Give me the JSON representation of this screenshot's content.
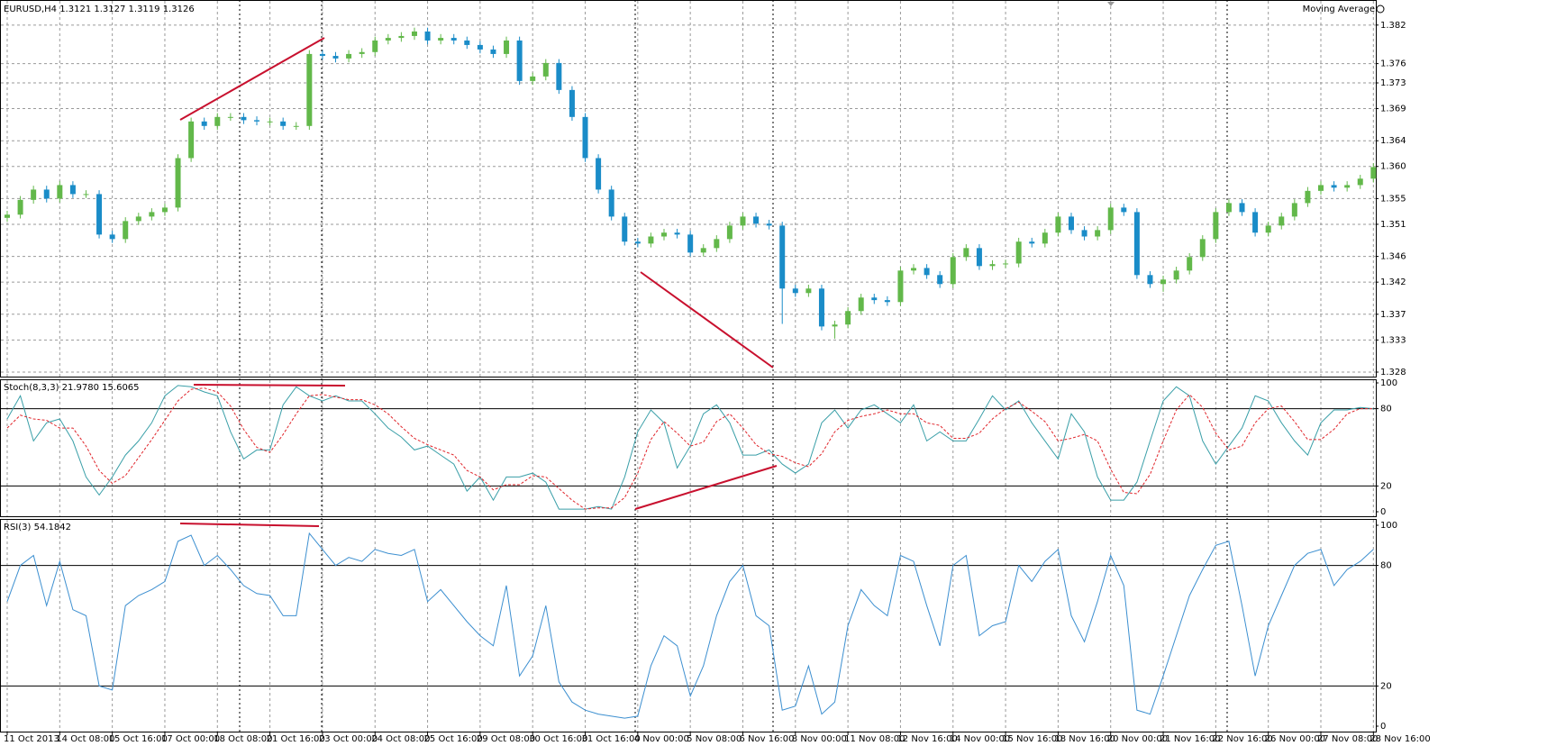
{
  "chart_data": [
    {
      "type": "candlestick",
      "title": "EURUSD,H4  1.3121 1.3127 1.3119 1.3126",
      "indicator": "Moving Average",
      "categories": [
        "11 Oct 2013",
        null,
        null,
        null,
        "14 Oct 08:00",
        null,
        null,
        null,
        "15 Oct 16:00",
        null,
        null,
        null,
        "17 Oct 00:00",
        null,
        null,
        null,
        "18 Oct 08:00",
        null,
        null,
        null,
        "21 Oct 16:00",
        null,
        null,
        null,
        "23 Oct 00:00",
        null,
        null,
        null,
        "24 Oct 08:00",
        null,
        null,
        null,
        "25 Oct 16:00",
        null,
        null,
        null,
        "29 Oct 08:00",
        null,
        null,
        null,
        "30 Oct 16:00",
        null,
        null,
        null,
        "31 Oct 16:00",
        null,
        null,
        null,
        "4 Nov 00:00",
        null,
        null,
        null,
        "5 Nov 08:00",
        null,
        null,
        null,
        "6 Nov 16:00",
        null,
        null,
        null,
        "8 Nov 00:00",
        null,
        null,
        null,
        "11 Nov 08:00",
        null,
        null,
        null,
        "12 Nov 16:00",
        null,
        null,
        null,
        "14 Nov 00:00",
        null,
        null,
        null,
        "15 Nov 16:00",
        null,
        null,
        null,
        "18 Nov 16:00",
        null,
        null,
        null,
        "20 Nov 00:00",
        null,
        null,
        null,
        "21 Nov 16:00",
        null,
        null,
        null,
        "22 Nov 16:00",
        null,
        null,
        null,
        "26 Nov 00:00",
        null,
        null,
        null,
        "27 Nov 08:00",
        null,
        null,
        null,
        "28 Nov 16:00"
      ],
      "open": [
        1.352,
        1.3525,
        1.3548,
        1.3564,
        1.355,
        1.3571,
        1.3557,
        1.3557,
        1.3494,
        1.3487,
        1.3515,
        1.3522,
        1.3529,
        1.3536,
        1.3613,
        1.367,
        1.3663,
        1.3677,
        1.3677,
        1.3672,
        1.367,
        1.367,
        1.3663,
        1.3663,
        1.3775,
        1.3772,
        1.3768,
        1.3775,
        1.3778,
        1.3796,
        1.38,
        1.3803,
        1.381,
        1.3796,
        1.38,
        1.3796,
        1.3789,
        1.3782,
        1.3775,
        1.3796,
        1.3733,
        1.374,
        1.3761,
        1.3719,
        1.3677,
        1.3613,
        1.3564,
        1.3522,
        1.3483,
        1.348,
        1.3491,
        1.3497,
        1.3494,
        1.3466,
        1.3473,
        1.3487,
        1.3508,
        1.3522,
        1.3511,
        1.3508,
        1.341,
        1.3403,
        1.341,
        1.3351,
        1.3354,
        1.3375,
        1.3396,
        1.3392,
        1.3389,
        1.3438,
        1.3442,
        1.3431,
        1.3417,
        1.3459,
        1.3473,
        1.3445,
        1.3448,
        1.3449,
        1.3483,
        1.348,
        1.3497,
        1.3522,
        1.3501,
        1.3491,
        1.3501,
        1.3536,
        1.3529,
        1.3431,
        1.3417,
        1.3424,
        1.3438,
        1.3459,
        1.3487,
        1.3529,
        1.3543,
        1.3529,
        1.3497,
        1.3508,
        1.3522,
        1.3543,
        1.3562,
        1.3571,
        1.3567,
        1.3571,
        1.3581
      ],
      "high": [
        1.3531,
        1.3554,
        1.357,
        1.357,
        1.3577,
        1.3577,
        1.3563,
        1.3563,
        1.35,
        1.3521,
        1.3528,
        1.3535,
        1.3542,
        1.3619,
        1.3676,
        1.3676,
        1.3683,
        1.3683,
        1.3683,
        1.3678,
        1.3676,
        1.3676,
        1.3669,
        1.3781,
        1.3781,
        1.3778,
        1.3781,
        1.3784,
        1.3802,
        1.3806,
        1.3809,
        1.3816,
        1.3816,
        1.3806,
        1.3806,
        1.3802,
        1.3795,
        1.3788,
        1.3802,
        1.3802,
        1.3746,
        1.3767,
        1.3767,
        1.3725,
        1.3683,
        1.3619,
        1.357,
        1.3528,
        1.3489,
        1.3497,
        1.3503,
        1.3503,
        1.35,
        1.3479,
        1.3493,
        1.3514,
        1.3528,
        1.3528,
        1.3517,
        1.3514,
        1.3416,
        1.3416,
        1.3416,
        1.336,
        1.3381,
        1.3402,
        1.3402,
        1.3398,
        1.3444,
        1.3448,
        1.3448,
        1.3437,
        1.3465,
        1.3479,
        1.3479,
        1.3454,
        1.3455,
        1.3489,
        1.3489,
        1.3503,
        1.3528,
        1.3528,
        1.3507,
        1.3507,
        1.3542,
        1.3542,
        1.3535,
        1.3437,
        1.343,
        1.3444,
        1.3465,
        1.3493,
        1.3535,
        1.3549,
        1.3549,
        1.3535,
        1.3514,
        1.3528,
        1.3549,
        1.3568,
        1.3577,
        1.3577,
        1.3577,
        1.3587,
        1.3605
      ],
      "low": [
        1.3514,
        1.3519,
        1.3542,
        1.3544,
        1.3544,
        1.3551,
        1.3551,
        1.3488,
        1.3481,
        1.3481,
        1.3509,
        1.3516,
        1.3523,
        1.353,
        1.3607,
        1.3657,
        1.3657,
        1.3671,
        1.3666,
        1.3664,
        1.3664,
        1.3657,
        1.3657,
        1.3657,
        1.3766,
        1.3762,
        1.3762,
        1.3769,
        1.3772,
        1.379,
        1.3794,
        1.3797,
        1.379,
        1.379,
        1.379,
        1.3783,
        1.3776,
        1.3769,
        1.3769,
        1.3727,
        1.3727,
        1.3734,
        1.3713,
        1.3671,
        1.3607,
        1.3558,
        1.3516,
        1.3477,
        1.3474,
        1.3474,
        1.3485,
        1.3488,
        1.346,
        1.346,
        1.3467,
        1.3481,
        1.3502,
        1.3505,
        1.3502,
        1.3355,
        1.3397,
        1.3397,
        1.3345,
        1.3332,
        1.3348,
        1.3369,
        1.3386,
        1.3383,
        1.3383,
        1.3432,
        1.3425,
        1.3411,
        1.3411,
        1.3453,
        1.3439,
        1.3439,
        1.3442,
        1.3443,
        1.3474,
        1.3474,
        1.3491,
        1.3495,
        1.3485,
        1.3485,
        1.3495,
        1.3523,
        1.3425,
        1.3411,
        1.3405,
        1.3418,
        1.3432,
        1.3453,
        1.3481,
        1.3523,
        1.3523,
        1.3491,
        1.3491,
        1.3502,
        1.3516,
        1.3537,
        1.3556,
        1.3561,
        1.3561,
        1.3565,
        1.3575
      ],
      "close": [
        1.3525,
        1.3548,
        1.3564,
        1.355,
        1.3571,
        1.3557,
        1.3557,
        1.3494,
        1.3487,
        1.3515,
        1.3522,
        1.3529,
        1.3536,
        1.3613,
        1.367,
        1.3663,
        1.3677,
        1.3677,
        1.3672,
        1.367,
        1.367,
        1.3663,
        1.3663,
        1.3775,
        1.3772,
        1.3768,
        1.3775,
        1.3778,
        1.3796,
        1.38,
        1.3803,
        1.381,
        1.3796,
        1.38,
        1.3796,
        1.3789,
        1.3782,
        1.3775,
        1.3796,
        1.3733,
        1.374,
        1.3761,
        1.3719,
        1.3677,
        1.3613,
        1.3564,
        1.3522,
        1.3483,
        1.348,
        1.3491,
        1.3497,
        1.3494,
        1.3466,
        1.3473,
        1.3487,
        1.3508,
        1.3522,
        1.3511,
        1.3508,
        1.341,
        1.3403,
        1.341,
        1.3351,
        1.3354,
        1.3375,
        1.3396,
        1.3392,
        1.3389,
        1.3438,
        1.3442,
        1.3431,
        1.3417,
        1.3459,
        1.3473,
        1.3445,
        1.3448,
        1.3449,
        1.3483,
        1.348,
        1.3497,
        1.3522,
        1.3501,
        1.3491,
        1.3501,
        1.3536,
        1.3529,
        1.3431,
        1.3417,
        1.3424,
        1.3438,
        1.3459,
        1.3487,
        1.3529,
        1.3543,
        1.3529,
        1.3497,
        1.3508,
        1.3522,
        1.3543,
        1.3562,
        1.3571,
        1.3567,
        1.3571,
        1.3581,
        1.3599
      ],
      "up_color": "#62b84a",
      "down_color": "#1a8cc8",
      "ylim": [
        1.3273,
        1.3859
      ],
      "yticks": [
        1.382,
        1.376,
        1.373,
        1.369,
        1.364,
        {
          "value": 1.36,
          "label": "1.360"
        },
        1.355,
        1.351,
        1.346,
        1.342,
        1.337,
        1.333,
        1.328
      ],
      "grid": true
    },
    {
      "type": "line",
      "title": "Stoch(8,3,3) 21.9780 15.6065",
      "series": [
        {
          "color": "#3a9fa8",
          "style": "solid",
          "values": [
            72,
            90,
            55,
            69,
            72,
            55,
            27,
            13,
            27,
            44,
            55,
            69,
            90,
            98,
            97,
            93,
            90,
            62,
            41,
            48,
            48,
            83,
            97,
            90,
            86,
            90,
            86,
            86,
            76,
            65,
            58,
            48,
            51,
            44,
            37,
            16,
            27,
            9,
            27,
            27,
            30,
            23,
            2,
            2,
            2,
            4,
            2,
            27,
            62,
            79,
            69,
            34,
            51,
            76,
            83,
            69,
            44,
            44,
            48,
            37,
            30,
            37,
            69,
            79,
            65,
            79,
            83,
            76,
            69,
            83,
            55,
            62,
            55,
            55,
            72,
            90,
            79,
            86,
            69,
            55,
            41,
            76,
            62,
            27,
            9,
            9,
            23,
            55,
            86,
            97,
            90,
            55,
            37,
            51,
            65,
            90,
            86,
            69,
            55,
            44,
            69,
            79,
            79,
            81,
            80
          ]
        },
        {
          "color": "#e0242a",
          "style": "dashed",
          "values": [
            65,
            75,
            72,
            71,
            65,
            65,
            51,
            32,
            22,
            28,
            42,
            56,
            71,
            86,
            95,
            96,
            93,
            82,
            64,
            50,
            46,
            60,
            76,
            90,
            91,
            89,
            87,
            87,
            83,
            76,
            66,
            57,
            52,
            48,
            44,
            32,
            27,
            17,
            21,
            21,
            28,
            27,
            18,
            9,
            2,
            3,
            3,
            11,
            30,
            56,
            70,
            61,
            51,
            54,
            70,
            76,
            65,
            52,
            45,
            43,
            38,
            35,
            45,
            62,
            71,
            74,
            76,
            79,
            76,
            76,
            69,
            67,
            57,
            57,
            61,
            72,
            80,
            85,
            78,
            70,
            55,
            57,
            60,
            55,
            33,
            15,
            14,
            29,
            55,
            79,
            91,
            81,
            61,
            48,
            51,
            69,
            80,
            82,
            70,
            56,
            56,
            64,
            76,
            80,
            80
          ]
        }
      ],
      "ylim": [
        0,
        100
      ],
      "yticks": [
        100,
        80,
        20,
        0
      ],
      "grid": false
    },
    {
      "type": "line",
      "title": "RSI(3) 54.1842",
      "series": [
        {
          "color": "#3c8fd0",
          "style": "solid",
          "values": [
            62,
            80,
            85,
            60,
            82,
            58,
            55,
            20,
            18,
            60,
            65,
            68,
            72,
            92,
            95,
            80,
            85,
            78,
            70,
            66,
            65,
            55,
            55,
            96,
            88,
            80,
            84,
            82,
            88,
            86,
            85,
            88,
            62,
            68,
            60,
            52,
            45,
            40,
            70,
            25,
            35,
            60,
            22,
            12,
            8,
            6,
            5,
            4,
            5,
            30,
            45,
            40,
            15,
            30,
            55,
            72,
            80,
            55,
            50,
            8,
            10,
            30,
            6,
            12,
            50,
            68,
            60,
            55,
            85,
            82,
            60,
            40,
            80,
            85,
            45,
            50,
            52,
            80,
            72,
            82,
            88,
            55,
            42,
            62,
            85,
            70,
            8,
            6,
            25,
            45,
            65,
            78,
            90,
            92,
            60,
            25,
            50,
            65,
            80,
            86,
            88,
            70,
            78,
            82,
            88
          ]
        }
      ],
      "ylim": [
        0,
        100
      ],
      "yticks": [
        100,
        80,
        20,
        0
      ],
      "grid": false
    }
  ]
}
